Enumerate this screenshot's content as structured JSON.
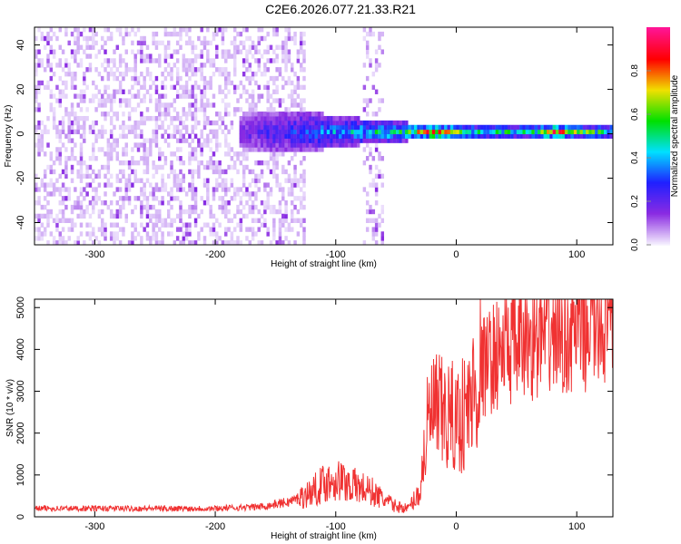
{
  "title": "C2E6.2026.077.21.33.R21",
  "chart_data": [
    {
      "type": "heatmap",
      "xlabel": "Height of straight line (km)",
      "ylabel": "Frequency (Hz)",
      "xlim": [
        -350,
        130
      ],
      "ylim": [
        -50,
        48
      ],
      "xticks": [
        -300,
        -200,
        -100,
        0,
        100
      ],
      "yticks": [
        -40,
        -20,
        0,
        20,
        40
      ],
      "colorbar": {
        "label": "Normalized spectral amplitude",
        "range": [
          0,
          1
        ],
        "ticks": [
          "0.0",
          "0.2",
          "0.4",
          "0.6",
          "0.8"
        ],
        "colors": [
          "#f4eefe",
          "#8a2be2",
          "#2020ff",
          "#00e0ff",
          "#00e000",
          "#f0e000",
          "#ff0000",
          "#ff1493"
        ]
      },
      "ridge": {
        "x": [
          -180,
          -160,
          -140,
          -120,
          -100,
          -80,
          -60,
          -40,
          -20,
          0,
          20,
          40,
          60,
          80,
          100,
          130
        ],
        "peak_amplitude": [
          0.2,
          0.25,
          0.3,
          0.35,
          0.4,
          0.45,
          0.5,
          0.55,
          0.9,
          0.6,
          0.5,
          0.5,
          0.5,
          0.85,
          0.6,
          0.5
        ],
        "halfwidth_hz": [
          8,
          10,
          10,
          9,
          7,
          6,
          5,
          4,
          3,
          3,
          3,
          3,
          3,
          3,
          3,
          3
        ]
      },
      "noise_region_x": [
        -350,
        -130
      ]
    },
    {
      "type": "line",
      "xlabel": "Height of straight line (km)",
      "ylabel": "SNR (10 * v/v)",
      "xlim": [
        -350,
        130
      ],
      "ylim": [
        0,
        5200
      ],
      "xticks": [
        -300,
        -200,
        -100,
        0,
        100
      ],
      "yticks": [
        0,
        1000,
        2000,
        3000,
        4000,
        5000
      ],
      "series": [
        {
          "name": "SNR",
          "color": "#f03232",
          "x": [
            -350,
            -340,
            -330,
            -320,
            -310,
            -300,
            -290,
            -280,
            -270,
            -260,
            -250,
            -240,
            -230,
            -220,
            -210,
            -200,
            -190,
            -180,
            -170,
            -160,
            -150,
            -140,
            -130,
            -120,
            -110,
            -100,
            -90,
            -80,
            -70,
            -60,
            -50,
            -40,
            -30,
            -25,
            -20,
            -10,
            0,
            10,
            20,
            30,
            40,
            50,
            60,
            70,
            80,
            90,
            100,
            110,
            120,
            130
          ],
          "y": [
            200,
            200,
            200,
            200,
            200,
            200,
            200,
            200,
            200,
            200,
            200,
            200,
            200,
            200,
            200,
            200,
            210,
            220,
            230,
            250,
            300,
            350,
            450,
            600,
            800,
            900,
            800,
            700,
            600,
            400,
            250,
            200,
            600,
            2000,
            2500,
            2400,
            2300,
            2600,
            3500,
            3800,
            4000,
            4100,
            4200,
            4300,
            4400,
            4400,
            4500,
            4600,
            4650,
            4650
          ]
        }
      ]
    }
  ]
}
